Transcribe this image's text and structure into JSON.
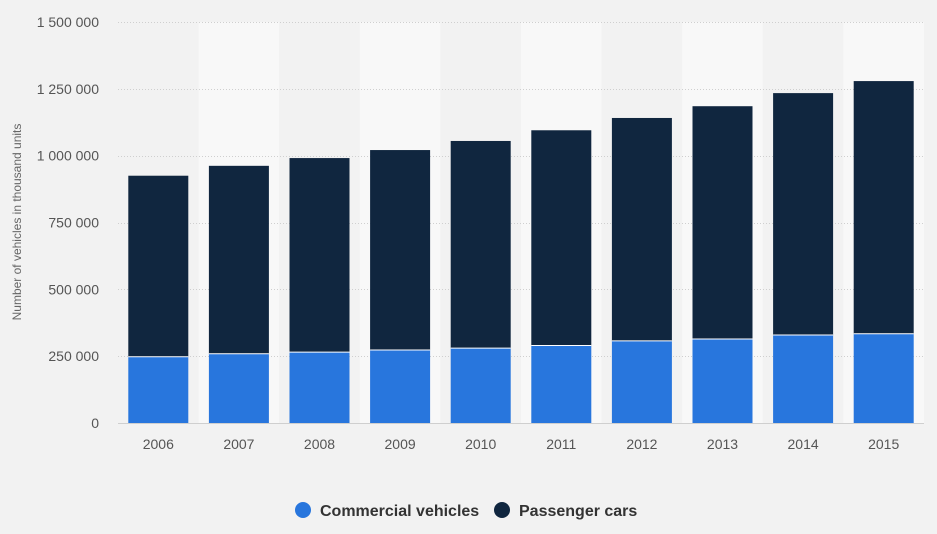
{
  "chart_data": {
    "type": "bar",
    "stacked": true,
    "title": "",
    "xlabel": "",
    "ylabel": "Number of vehicles in thousand units",
    "categories": [
      "2006",
      "2007",
      "2008",
      "2009",
      "2010",
      "2011",
      "2012",
      "2013",
      "2014",
      "2015"
    ],
    "series": [
      {
        "name": "Commercial vehicles",
        "color": "#2876dd",
        "values": [
          248000,
          259000,
          265000,
          273000,
          280000,
          290000,
          307000,
          314000,
          329000,
          334000
        ]
      },
      {
        "name": "Passenger cars",
        "color": "#10263f",
        "values": [
          677000,
          703000,
          726000,
          748000,
          775000,
          805000,
          834000,
          871000,
          905000,
          945000
        ]
      }
    ],
    "ylim": [
      0,
      1500000
    ],
    "yticks": [
      0,
      250000,
      500000,
      750000,
      1000000,
      1250000,
      1500000
    ],
    "ytick_labels": [
      "0",
      "250 000",
      "500 000",
      "750 000",
      "1 000 000",
      "1 250 000",
      "1 500 000"
    ],
    "grid": true,
    "legend_position": "bottom-center"
  }
}
